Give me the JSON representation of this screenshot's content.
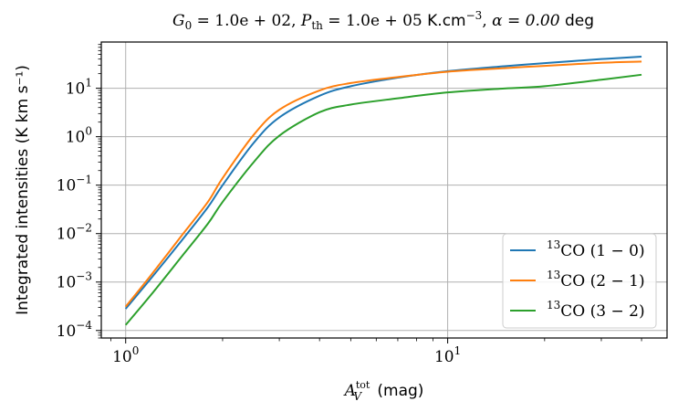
{
  "chart_data": {
    "type": "line",
    "title_parts": {
      "g0_sym": "G",
      "g0_sub": "0",
      "g0_val": " = 1.0e + 02, ",
      "p_sym": "P",
      "p_sub": "th",
      "p_val": " = 1.0e + 05 ",
      "unit": "K.cm",
      "unit_exp": "−3",
      "sep": ", ",
      "alpha": "α = 0.00 ",
      "deg": "deg"
    },
    "xlabel_parts": {
      "sym": "A",
      "sup": "tot",
      "sub": "V",
      "unit": " (mag)"
    },
    "ylabel": "Integrated intensities (K km s⁻¹)",
    "x_scale": "log",
    "y_scale": "log",
    "xlim": [
      0.84,
      48
    ],
    "ylim": [
      7e-05,
      90
    ],
    "grid": true,
    "legend_position": "lower-right",
    "x_ticks": [
      {
        "value": 1,
        "base": "10",
        "exp": "0"
      },
      {
        "value": 10,
        "base": "10",
        "exp": "1"
      }
    ],
    "y_ticks": [
      {
        "value": 0.0001,
        "base": "10",
        "exp": "−4"
      },
      {
        "value": 0.001,
        "base": "10",
        "exp": "−3"
      },
      {
        "value": 0.01,
        "base": "10",
        "exp": "−2"
      },
      {
        "value": 0.1,
        "base": "10",
        "exp": "−1"
      },
      {
        "value": 1,
        "base": "10",
        "exp": "0"
      },
      {
        "value": 10,
        "base": "10",
        "exp": "1"
      }
    ],
    "x": [
      1.0,
      1.2,
      1.5,
      1.8,
      2.0,
      2.5,
      3.0,
      4.0,
      5.0,
      7.0,
      10,
      15,
      20,
      30,
      40
    ],
    "series": [
      {
        "iso": "13",
        "mol": "CO",
        "trans": " (1 − 0)",
        "color": "#1f77b4",
        "values": [
          0.00028,
          0.0012,
          0.0075,
          0.035,
          0.1,
          0.75,
          2.5,
          7.0,
          11.0,
          16.5,
          22.5,
          28.5,
          33.0,
          40.0,
          45.0
        ]
      },
      {
        "iso": "13",
        "mol": "CO",
        "trans": " (2 − 1)",
        "color": "#ff7f0e",
        "values": [
          0.00031,
          0.0014,
          0.0095,
          0.045,
          0.14,
          1.1,
          3.6,
          9.0,
          12.8,
          17.0,
          22.0,
          26.0,
          29.0,
          33.5,
          35.5
        ]
      },
      {
        "iso": "13",
        "mol": "CO",
        "trans": " (3 − 2)",
        "color": "#2ca02c",
        "values": [
          0.00013,
          0.00055,
          0.0035,
          0.016,
          0.045,
          0.3,
          1.05,
          3.2,
          4.6,
          6.2,
          8.2,
          9.9,
          11.0,
          15.0,
          19.0
        ]
      }
    ]
  }
}
